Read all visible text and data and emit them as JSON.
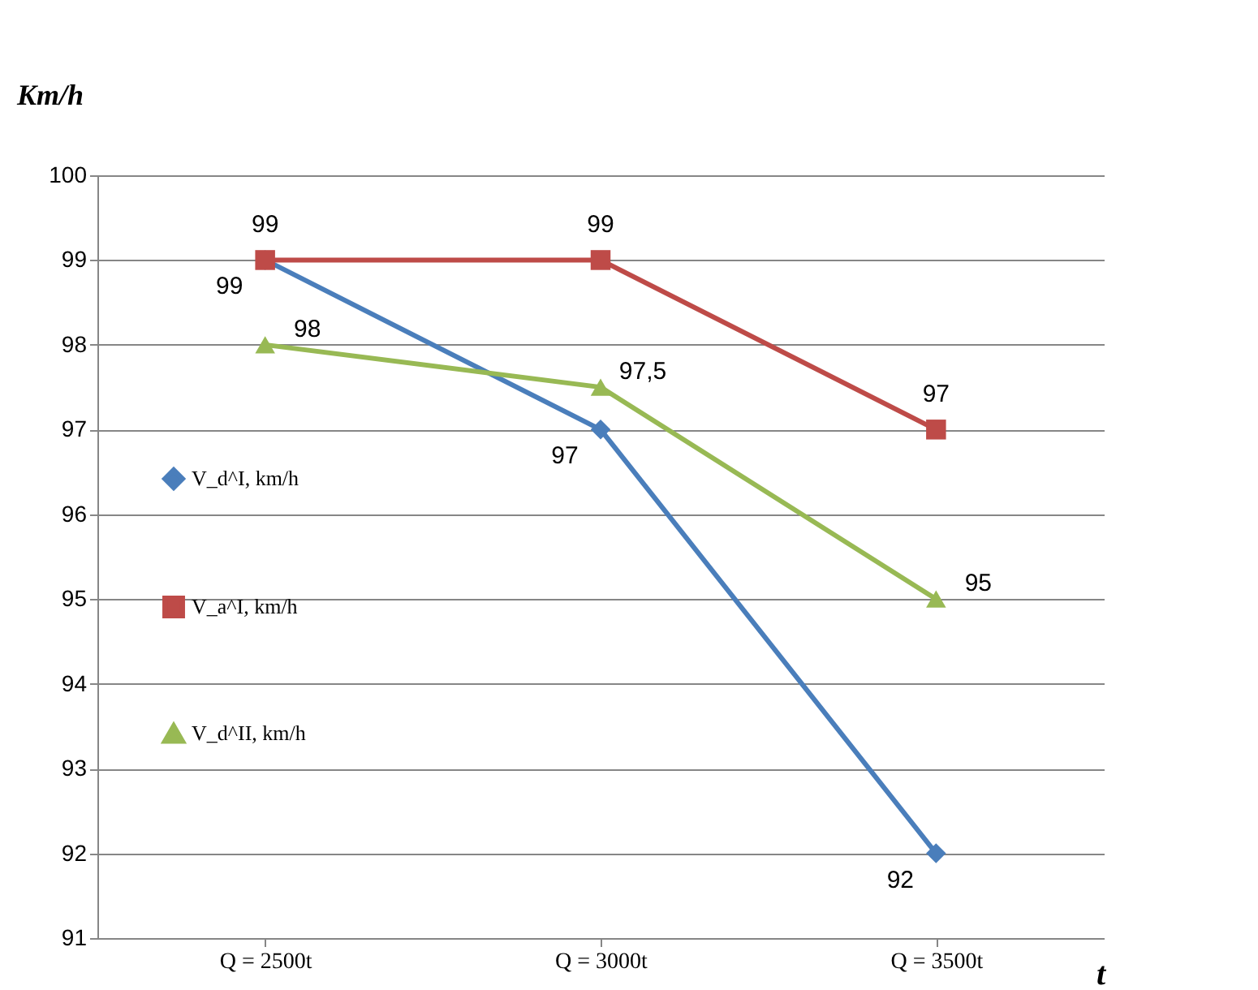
{
  "chart_data": {
    "type": "line",
    "ylabel": "Km/h",
    "xlabel": "t",
    "categories": [
      "Q = 2500t",
      "Q = 3000t",
      "Q = 3500t"
    ],
    "series": [
      {
        "name": "V_d^I, km/h",
        "color": "#4a7ebb",
        "marker": "diamond",
        "values": [
          99,
          97,
          92
        ],
        "value_labels": [
          "99",
          "97",
          "92"
        ]
      },
      {
        "name": "V_a^I, km/h",
        "color": "#be4b48",
        "marker": "square",
        "values": [
          99,
          99,
          97
        ],
        "value_labels": [
          "99",
          "99",
          "97"
        ]
      },
      {
        "name": "V_d^II, km/h",
        "color": "#98b954",
        "marker": "triangle",
        "values": [
          98,
          97.5,
          95
        ],
        "value_labels": [
          "98",
          "97,5",
          "95"
        ]
      }
    ],
    "ylim": [
      91,
      100
    ],
    "yticks": [
      91,
      92,
      93,
      94,
      95,
      96,
      97,
      98,
      99,
      100
    ],
    "grid": "y",
    "legend": "left",
    "line_style": "solid"
  }
}
